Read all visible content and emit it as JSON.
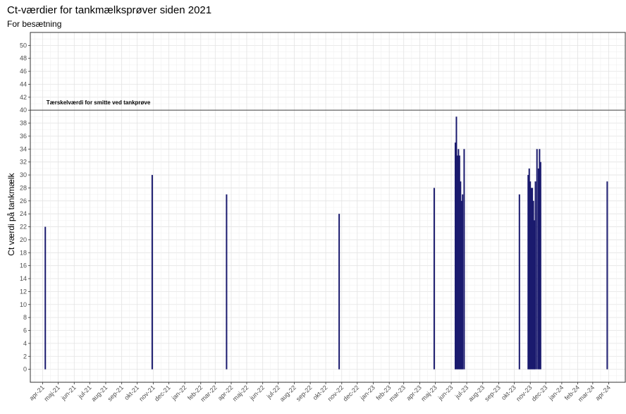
{
  "chart_data": {
    "type": "bar",
    "title": "Ct-værdier for tankmælksprøver siden 2021",
    "subtitle": "For besætning",
    "ylabel": "Ct værdi på tankmælk",
    "xlabel": "",
    "ylim": [
      -2,
      52
    ],
    "yticks": [
      0,
      2,
      4,
      6,
      8,
      10,
      12,
      14,
      16,
      18,
      20,
      22,
      24,
      26,
      28,
      30,
      32,
      34,
      36,
      38,
      40,
      42,
      44,
      46,
      48,
      50
    ],
    "xlim": [
      "2021-03-08",
      "2024-05-03"
    ],
    "xticks": [
      {
        "date": "2021-04-01",
        "label": "apr-21"
      },
      {
        "date": "2021-05-01",
        "label": "maj-21"
      },
      {
        "date": "2021-06-01",
        "label": "jun-21"
      },
      {
        "date": "2021-07-01",
        "label": "jul-21"
      },
      {
        "date": "2021-08-01",
        "label": "aug-21"
      },
      {
        "date": "2021-09-01",
        "label": "sep-21"
      },
      {
        "date": "2021-10-01",
        "label": "okt-21"
      },
      {
        "date": "2021-11-01",
        "label": "nov-21"
      },
      {
        "date": "2021-12-01",
        "label": "dec-21"
      },
      {
        "date": "2022-01-01",
        "label": "jan-22"
      },
      {
        "date": "2022-02-01",
        "label": "feb-22"
      },
      {
        "date": "2022-03-01",
        "label": "mar-22"
      },
      {
        "date": "2022-04-01",
        "label": "apr-22"
      },
      {
        "date": "2022-05-01",
        "label": "maj-22"
      },
      {
        "date": "2022-06-01",
        "label": "jun-22"
      },
      {
        "date": "2022-07-01",
        "label": "jul-22"
      },
      {
        "date": "2022-08-01",
        "label": "aug-22"
      },
      {
        "date": "2022-09-01",
        "label": "sep-22"
      },
      {
        "date": "2022-10-01",
        "label": "okt-22"
      },
      {
        "date": "2022-11-01",
        "label": "nov-22"
      },
      {
        "date": "2022-12-01",
        "label": "dec-22"
      },
      {
        "date": "2023-01-01",
        "label": "jan-23"
      },
      {
        "date": "2023-02-01",
        "label": "feb-23"
      },
      {
        "date": "2023-03-01",
        "label": "mar-23"
      },
      {
        "date": "2023-04-01",
        "label": "apr-23"
      },
      {
        "date": "2023-05-01",
        "label": "maj-23"
      },
      {
        "date": "2023-06-01",
        "label": "jun-23"
      },
      {
        "date": "2023-07-01",
        "label": "jul-23"
      },
      {
        "date": "2023-08-01",
        "label": "aug-23"
      },
      {
        "date": "2023-09-01",
        "label": "sep-23"
      },
      {
        "date": "2023-10-01",
        "label": "okt-23"
      },
      {
        "date": "2023-11-01",
        "label": "nov-23"
      },
      {
        "date": "2023-12-01",
        "label": "dec-23"
      },
      {
        "date": "2024-01-01",
        "label": "jan-24"
      },
      {
        "date": "2024-02-01",
        "label": "feb-24"
      },
      {
        "date": "2024-03-01",
        "label": "mar-24"
      },
      {
        "date": "2024-04-01",
        "label": "apr-24"
      }
    ],
    "bars": [
      {
        "date": "2021-04-06",
        "value": 22
      },
      {
        "date": "2021-10-30",
        "value": 30
      },
      {
        "date": "2022-03-23",
        "value": 27
      },
      {
        "date": "2022-10-27",
        "value": 24
      },
      {
        "date": "2023-04-29",
        "value": 28
      },
      {
        "date": "2023-06-09",
        "value": 35
      },
      {
        "date": "2023-06-11",
        "value": 39
      },
      {
        "date": "2023-06-13",
        "value": 33
      },
      {
        "date": "2023-06-15",
        "value": 34
      },
      {
        "date": "2023-06-17",
        "value": 33
      },
      {
        "date": "2023-06-19",
        "value": 29
      },
      {
        "date": "2023-06-21",
        "value": 26
      },
      {
        "date": "2023-06-23",
        "value": 27
      },
      {
        "date": "2023-06-26",
        "value": 34
      },
      {
        "date": "2023-10-11",
        "value": 27
      },
      {
        "date": "2023-10-28",
        "value": 30
      },
      {
        "date": "2023-10-30",
        "value": 31
      },
      {
        "date": "2023-11-01",
        "value": 29
      },
      {
        "date": "2023-11-03",
        "value": 28
      },
      {
        "date": "2023-11-05",
        "value": 28
      },
      {
        "date": "2023-11-07",
        "value": 26
      },
      {
        "date": "2023-11-09",
        "value": 23
      },
      {
        "date": "2023-11-11",
        "value": 29
      },
      {
        "date": "2023-11-14",
        "value": 34
      },
      {
        "date": "2023-11-17",
        "value": 31
      },
      {
        "date": "2023-11-19",
        "value": 34
      },
      {
        "date": "2023-11-21",
        "value": 32
      },
      {
        "date": "2024-03-29",
        "value": 29
      }
    ],
    "threshold": {
      "value": 40,
      "label": "Tærskelværdi for smitte ved tankprøve"
    },
    "bar_color": "#1a1a6e",
    "grid": true
  }
}
